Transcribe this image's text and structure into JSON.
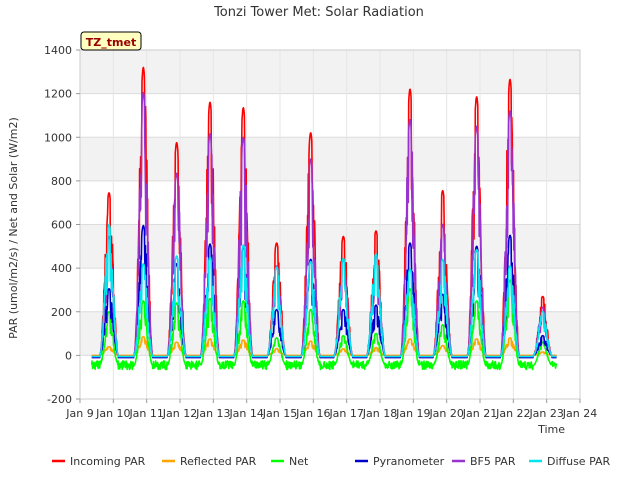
{
  "chart_data": {
    "type": "line",
    "title": "Tonzi Tower Met: Solar Radiation",
    "site_label": "TZ_tmet",
    "xlabel": "Time",
    "ylabel": "PAR (umol/m2/s) / Net and Solar (W/m2)",
    "ylim": [
      -200,
      1400
    ],
    "yticks": [
      -200,
      0,
      200,
      400,
      600,
      800,
      1000,
      1200,
      1400
    ],
    "xlim": [
      9,
      24
    ],
    "xticks": [
      9,
      10,
      11,
      12,
      13,
      14,
      15,
      16,
      17,
      18,
      19,
      20,
      21,
      22,
      23,
      24
    ],
    "xtick_labels": [
      "Jan 9",
      "Jan 10",
      "Jan 11",
      "Jan 12",
      "Jan 13",
      "Jan 14",
      "Jan 15",
      "Jan 16",
      "Jan 17",
      "Jan 18",
      "Jan 19",
      "Jan 20",
      "Jan 21",
      "Jan 22",
      "Jan 23",
      "Jan 24"
    ],
    "day_centers": [
      9.87,
      10.9,
      11.9,
      12.9,
      13.9,
      14.9,
      15.92,
      16.9,
      17.88,
      18.9,
      19.88,
      20.9,
      21.9,
      22.88
    ],
    "grid": true,
    "legend_position": "bottom",
    "series": [
      {
        "name": "Incoming PAR",
        "color": "#ff0000",
        "night": -5,
        "daily_peaks": [
          745,
          1320,
          975,
          1160,
          1135,
          515,
          1020,
          545,
          570,
          1220,
          755,
          1185,
          1265,
          270
        ]
      },
      {
        "name": "Reflected PAR",
        "color": "#ffa500",
        "night": 0,
        "daily_peaks": [
          40,
          85,
          60,
          75,
          70,
          30,
          65,
          30,
          35,
          75,
          45,
          75,
          80,
          15
        ]
      },
      {
        "name": "Net",
        "color": "#00ff00",
        "night": -45,
        "daily_peaks": [
          200,
          250,
          240,
          260,
          250,
          80,
          210,
          90,
          100,
          305,
          140,
          250,
          345,
          60
        ]
      },
      {
        "name": "Pyranometer",
        "color": "#0000cc",
        "night": -10,
        "daily_peaks": [
          305,
          595,
          420,
          510,
          500,
          210,
          440,
          210,
          230,
          515,
          280,
          500,
          550,
          90
        ]
      },
      {
        "name": "BF5 PAR",
        "color": "#9a32cd",
        "night": -5,
        "daily_peaks": [
          545,
          1205,
          835,
          1015,
          1000,
          410,
          900,
          440,
          460,
          1080,
          600,
          1050,
          1120,
          220
        ]
      },
      {
        "name": "Diffuse PAR",
        "color": "#00e5ee",
        "night": -5,
        "daily_peaks": [
          600,
          420,
          455,
          450,
          505,
          405,
          430,
          445,
          465,
          395,
          440,
          485,
          410,
          200
        ]
      }
    ]
  }
}
